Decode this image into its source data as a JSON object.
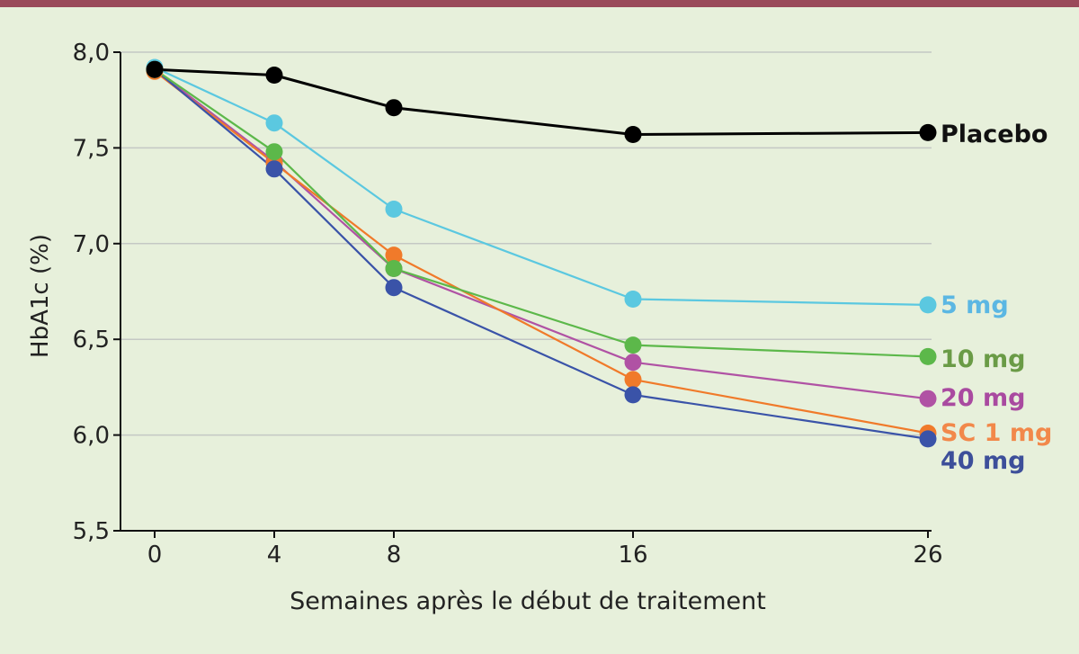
{
  "colors": {
    "background": "#e7f0db",
    "top_bar": "#9a4a5a",
    "grid": "#c4c8c4",
    "axis": "#111111"
  },
  "chart_data": {
    "type": "line",
    "xlabel": "Semaines après le début de traitement",
    "ylabel": "HbA1c (%)",
    "x": [
      0,
      4,
      8,
      16,
      26
    ],
    "x_tick_labels": [
      "0",
      "4",
      "8",
      "16",
      "26"
    ],
    "ylim": [
      5.5,
      8.0
    ],
    "y_ticks": [
      5.5,
      6.0,
      6.5,
      7.0,
      7.5,
      8.0
    ],
    "y_tick_labels": [
      "5,5",
      "6,0",
      "6,5",
      "7,0",
      "7,5",
      "8,0"
    ],
    "grid": true,
    "legend_placement": "inline-right",
    "series": [
      {
        "name": "Placebo",
        "color": "#000000",
        "values": [
          7.91,
          7.88,
          7.71,
          7.57,
          7.58
        ]
      },
      {
        "name": "5 mg",
        "color": "#5bc8e0",
        "values": [
          7.92,
          7.63,
          7.18,
          6.71,
          6.68
        ]
      },
      {
        "name": "10 mg",
        "color": "#5cb84a",
        "values": [
          7.91,
          7.48,
          6.87,
          6.47,
          6.41
        ]
      },
      {
        "name": "20 mg",
        "color": "#b052a4",
        "values": [
          7.91,
          7.43,
          6.87,
          6.38,
          6.19
        ]
      },
      {
        "name": "SC 1 mg",
        "color": "#f07a2a",
        "values": [
          7.9,
          7.42,
          6.94,
          6.29,
          6.01
        ]
      },
      {
        "name": "40 mg",
        "color": "#3a53a8",
        "values": [
          7.91,
          7.39,
          6.77,
          6.21,
          5.98
        ]
      }
    ],
    "legend_label_colors": {
      "Placebo": "#111111",
      "5 mg": "#5bb7e3",
      "10 mg": "#6a9b46",
      "20 mg": "#a94aa0",
      "SC 1 mg": "#f2884a",
      "40 mg": "#3d4f9a"
    }
  }
}
